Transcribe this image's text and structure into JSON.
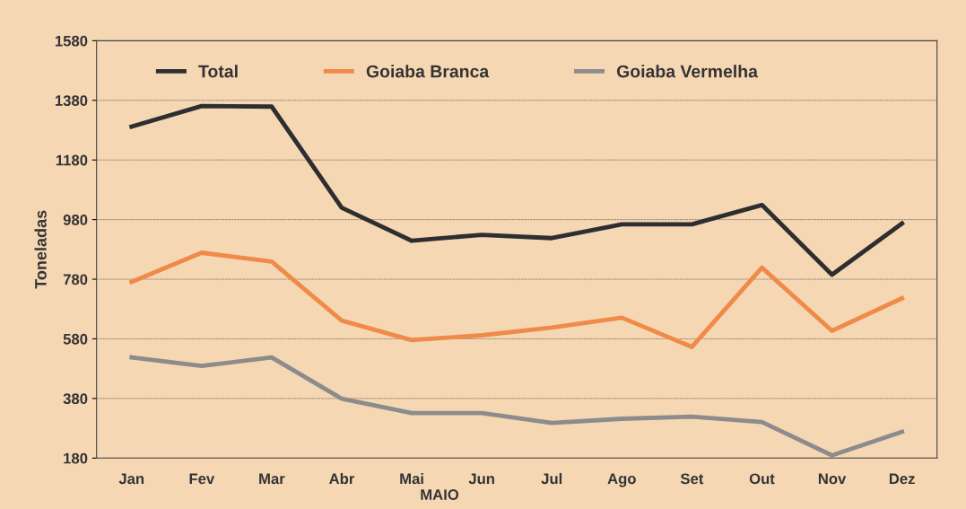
{
  "chart_data": {
    "type": "line",
    "ylabel": "Toneladas",
    "categories": [
      "Jan",
      "Fev",
      "Mar",
      "Abr",
      "Mai",
      "Jun",
      "Jul",
      "Ago",
      "Set",
      "Out",
      "Nov",
      "Dez"
    ],
    "series": [
      {
        "name": "Total",
        "color": "#2e2e30",
        "values": [
          1292,
          1361,
          1359,
          1020,
          909,
          929,
          918,
          964,
          964,
          1029,
          795,
          967
        ]
      },
      {
        "name": "Goiaba Branca",
        "color": "#f08a48",
        "values": [
          771,
          869,
          839,
          641,
          576,
          592,
          618,
          651,
          553,
          819,
          607,
          716
        ]
      },
      {
        "name": "Goiaba Vermelha",
        "color": "#8c8c8c",
        "values": [
          518,
          489,
          518,
          379,
          331,
          331,
          298,
          312,
          319,
          301,
          189,
          268
        ]
      }
    ],
    "ylim": [
      180,
      1580
    ],
    "yticks": [
      180,
      380,
      580,
      780,
      980,
      1180,
      1380,
      1580
    ],
    "grid": "y",
    "legend": "top",
    "marker": "none",
    "line_style": "solid",
    "annotations": [
      "MAIO"
    ]
  }
}
